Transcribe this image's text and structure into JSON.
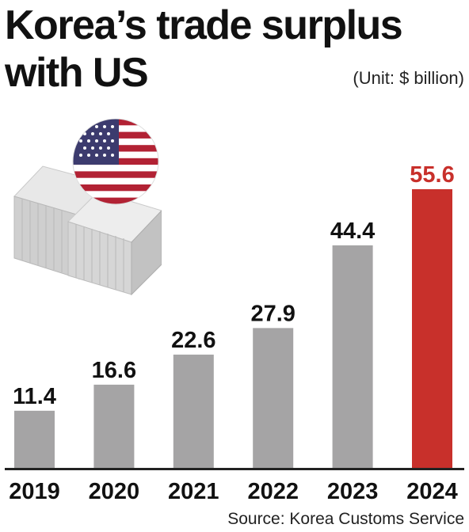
{
  "title_lines": [
    "Korea’s trade surplus",
    "with US"
  ],
  "unit": "(Unit: $ billion)",
  "source": "Source: Korea Customs Service",
  "colors": {
    "bar": "#a5a4a5",
    "highlight": "#c8302b",
    "text": "#111111"
  },
  "icons": {
    "flag": "us-flag-icon",
    "containers": "shipping-containers-icon"
  },
  "chart_data": {
    "type": "bar",
    "title": "Korea’s trade surplus with US",
    "ylabel": "",
    "xlabel": "",
    "unit": "(Unit: $ billion)",
    "categories": [
      "2019",
      "2020",
      "2021",
      "2022",
      "2023",
      "2024"
    ],
    "values": [
      11.4,
      16.6,
      22.6,
      27.9,
      44.4,
      55.6
    ],
    "data_labels": [
      "11.4",
      "16.6",
      "22.6",
      "27.9",
      "44.4",
      "55.6"
    ],
    "highlight_index": 5,
    "ylim": [
      0,
      60
    ],
    "grid": false,
    "legend": "none"
  }
}
